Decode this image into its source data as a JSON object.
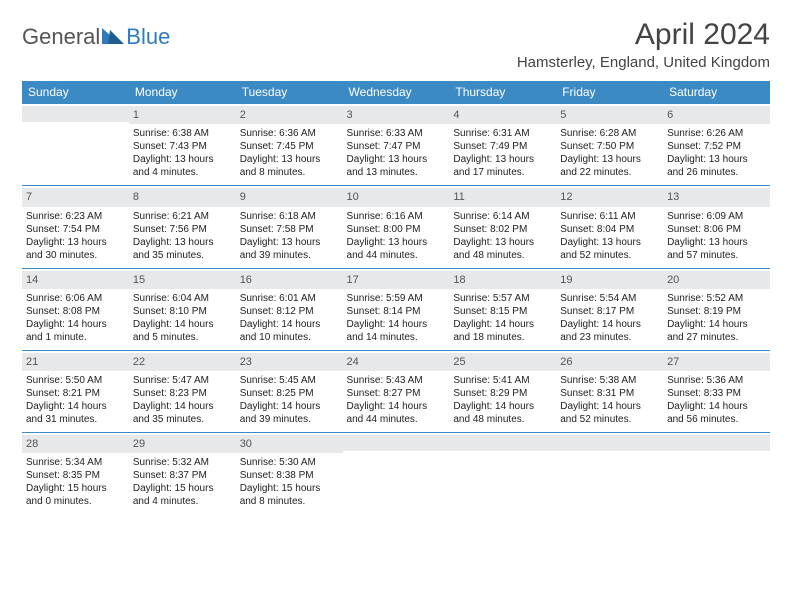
{
  "logo": {
    "general": "General",
    "blue": "Blue"
  },
  "title": "April 2024",
  "location": "Hamsterley, England, United Kingdom",
  "colors": {
    "header_bg": "#3b8ac4",
    "header_fg": "#ffffff",
    "daybar_bg": "#e6e8ea",
    "row_border": "#3b8ac4",
    "logo_blue": "#2f7bbf",
    "text": "#333333"
  },
  "weekdays": [
    "Sunday",
    "Monday",
    "Tuesday",
    "Wednesday",
    "Thursday",
    "Friday",
    "Saturday"
  ],
  "weeks": [
    [
      {
        "n": "",
        "lines": []
      },
      {
        "n": "1",
        "lines": [
          "Sunrise: 6:38 AM",
          "Sunset: 7:43 PM",
          "Daylight: 13 hours and 4 minutes."
        ]
      },
      {
        "n": "2",
        "lines": [
          "Sunrise: 6:36 AM",
          "Sunset: 7:45 PM",
          "Daylight: 13 hours and 8 minutes."
        ]
      },
      {
        "n": "3",
        "lines": [
          "Sunrise: 6:33 AM",
          "Sunset: 7:47 PM",
          "Daylight: 13 hours and 13 minutes."
        ]
      },
      {
        "n": "4",
        "lines": [
          "Sunrise: 6:31 AM",
          "Sunset: 7:49 PM",
          "Daylight: 13 hours and 17 minutes."
        ]
      },
      {
        "n": "5",
        "lines": [
          "Sunrise: 6:28 AM",
          "Sunset: 7:50 PM",
          "Daylight: 13 hours and 22 minutes."
        ]
      },
      {
        "n": "6",
        "lines": [
          "Sunrise: 6:26 AM",
          "Sunset: 7:52 PM",
          "Daylight: 13 hours and 26 minutes."
        ]
      }
    ],
    [
      {
        "n": "7",
        "lines": [
          "Sunrise: 6:23 AM",
          "Sunset: 7:54 PM",
          "Daylight: 13 hours and 30 minutes."
        ]
      },
      {
        "n": "8",
        "lines": [
          "Sunrise: 6:21 AM",
          "Sunset: 7:56 PM",
          "Daylight: 13 hours and 35 minutes."
        ]
      },
      {
        "n": "9",
        "lines": [
          "Sunrise: 6:18 AM",
          "Sunset: 7:58 PM",
          "Daylight: 13 hours and 39 minutes."
        ]
      },
      {
        "n": "10",
        "lines": [
          "Sunrise: 6:16 AM",
          "Sunset: 8:00 PM",
          "Daylight: 13 hours and 44 minutes."
        ]
      },
      {
        "n": "11",
        "lines": [
          "Sunrise: 6:14 AM",
          "Sunset: 8:02 PM",
          "Daylight: 13 hours and 48 minutes."
        ]
      },
      {
        "n": "12",
        "lines": [
          "Sunrise: 6:11 AM",
          "Sunset: 8:04 PM",
          "Daylight: 13 hours and 52 minutes."
        ]
      },
      {
        "n": "13",
        "lines": [
          "Sunrise: 6:09 AM",
          "Sunset: 8:06 PM",
          "Daylight: 13 hours and 57 minutes."
        ]
      }
    ],
    [
      {
        "n": "14",
        "lines": [
          "Sunrise: 6:06 AM",
          "Sunset: 8:08 PM",
          "Daylight: 14 hours and 1 minute."
        ]
      },
      {
        "n": "15",
        "lines": [
          "Sunrise: 6:04 AM",
          "Sunset: 8:10 PM",
          "Daylight: 14 hours and 5 minutes."
        ]
      },
      {
        "n": "16",
        "lines": [
          "Sunrise: 6:01 AM",
          "Sunset: 8:12 PM",
          "Daylight: 14 hours and 10 minutes."
        ]
      },
      {
        "n": "17",
        "lines": [
          "Sunrise: 5:59 AM",
          "Sunset: 8:14 PM",
          "Daylight: 14 hours and 14 minutes."
        ]
      },
      {
        "n": "18",
        "lines": [
          "Sunrise: 5:57 AM",
          "Sunset: 8:15 PM",
          "Daylight: 14 hours and 18 minutes."
        ]
      },
      {
        "n": "19",
        "lines": [
          "Sunrise: 5:54 AM",
          "Sunset: 8:17 PM",
          "Daylight: 14 hours and 23 minutes."
        ]
      },
      {
        "n": "20",
        "lines": [
          "Sunrise: 5:52 AM",
          "Sunset: 8:19 PM",
          "Daylight: 14 hours and 27 minutes."
        ]
      }
    ],
    [
      {
        "n": "21",
        "lines": [
          "Sunrise: 5:50 AM",
          "Sunset: 8:21 PM",
          "Daylight: 14 hours and 31 minutes."
        ]
      },
      {
        "n": "22",
        "lines": [
          "Sunrise: 5:47 AM",
          "Sunset: 8:23 PM",
          "Daylight: 14 hours and 35 minutes."
        ]
      },
      {
        "n": "23",
        "lines": [
          "Sunrise: 5:45 AM",
          "Sunset: 8:25 PM",
          "Daylight: 14 hours and 39 minutes."
        ]
      },
      {
        "n": "24",
        "lines": [
          "Sunrise: 5:43 AM",
          "Sunset: 8:27 PM",
          "Daylight: 14 hours and 44 minutes."
        ]
      },
      {
        "n": "25",
        "lines": [
          "Sunrise: 5:41 AM",
          "Sunset: 8:29 PM",
          "Daylight: 14 hours and 48 minutes."
        ]
      },
      {
        "n": "26",
        "lines": [
          "Sunrise: 5:38 AM",
          "Sunset: 8:31 PM",
          "Daylight: 14 hours and 52 minutes."
        ]
      },
      {
        "n": "27",
        "lines": [
          "Sunrise: 5:36 AM",
          "Sunset: 8:33 PM",
          "Daylight: 14 hours and 56 minutes."
        ]
      }
    ],
    [
      {
        "n": "28",
        "lines": [
          "Sunrise: 5:34 AM",
          "Sunset: 8:35 PM",
          "Daylight: 15 hours and 0 minutes."
        ]
      },
      {
        "n": "29",
        "lines": [
          "Sunrise: 5:32 AM",
          "Sunset: 8:37 PM",
          "Daylight: 15 hours and 4 minutes."
        ]
      },
      {
        "n": "30",
        "lines": [
          "Sunrise: 5:30 AM",
          "Sunset: 8:38 PM",
          "Daylight: 15 hours and 8 minutes."
        ]
      },
      {
        "n": "",
        "lines": []
      },
      {
        "n": "",
        "lines": []
      },
      {
        "n": "",
        "lines": []
      },
      {
        "n": "",
        "lines": []
      }
    ]
  ]
}
